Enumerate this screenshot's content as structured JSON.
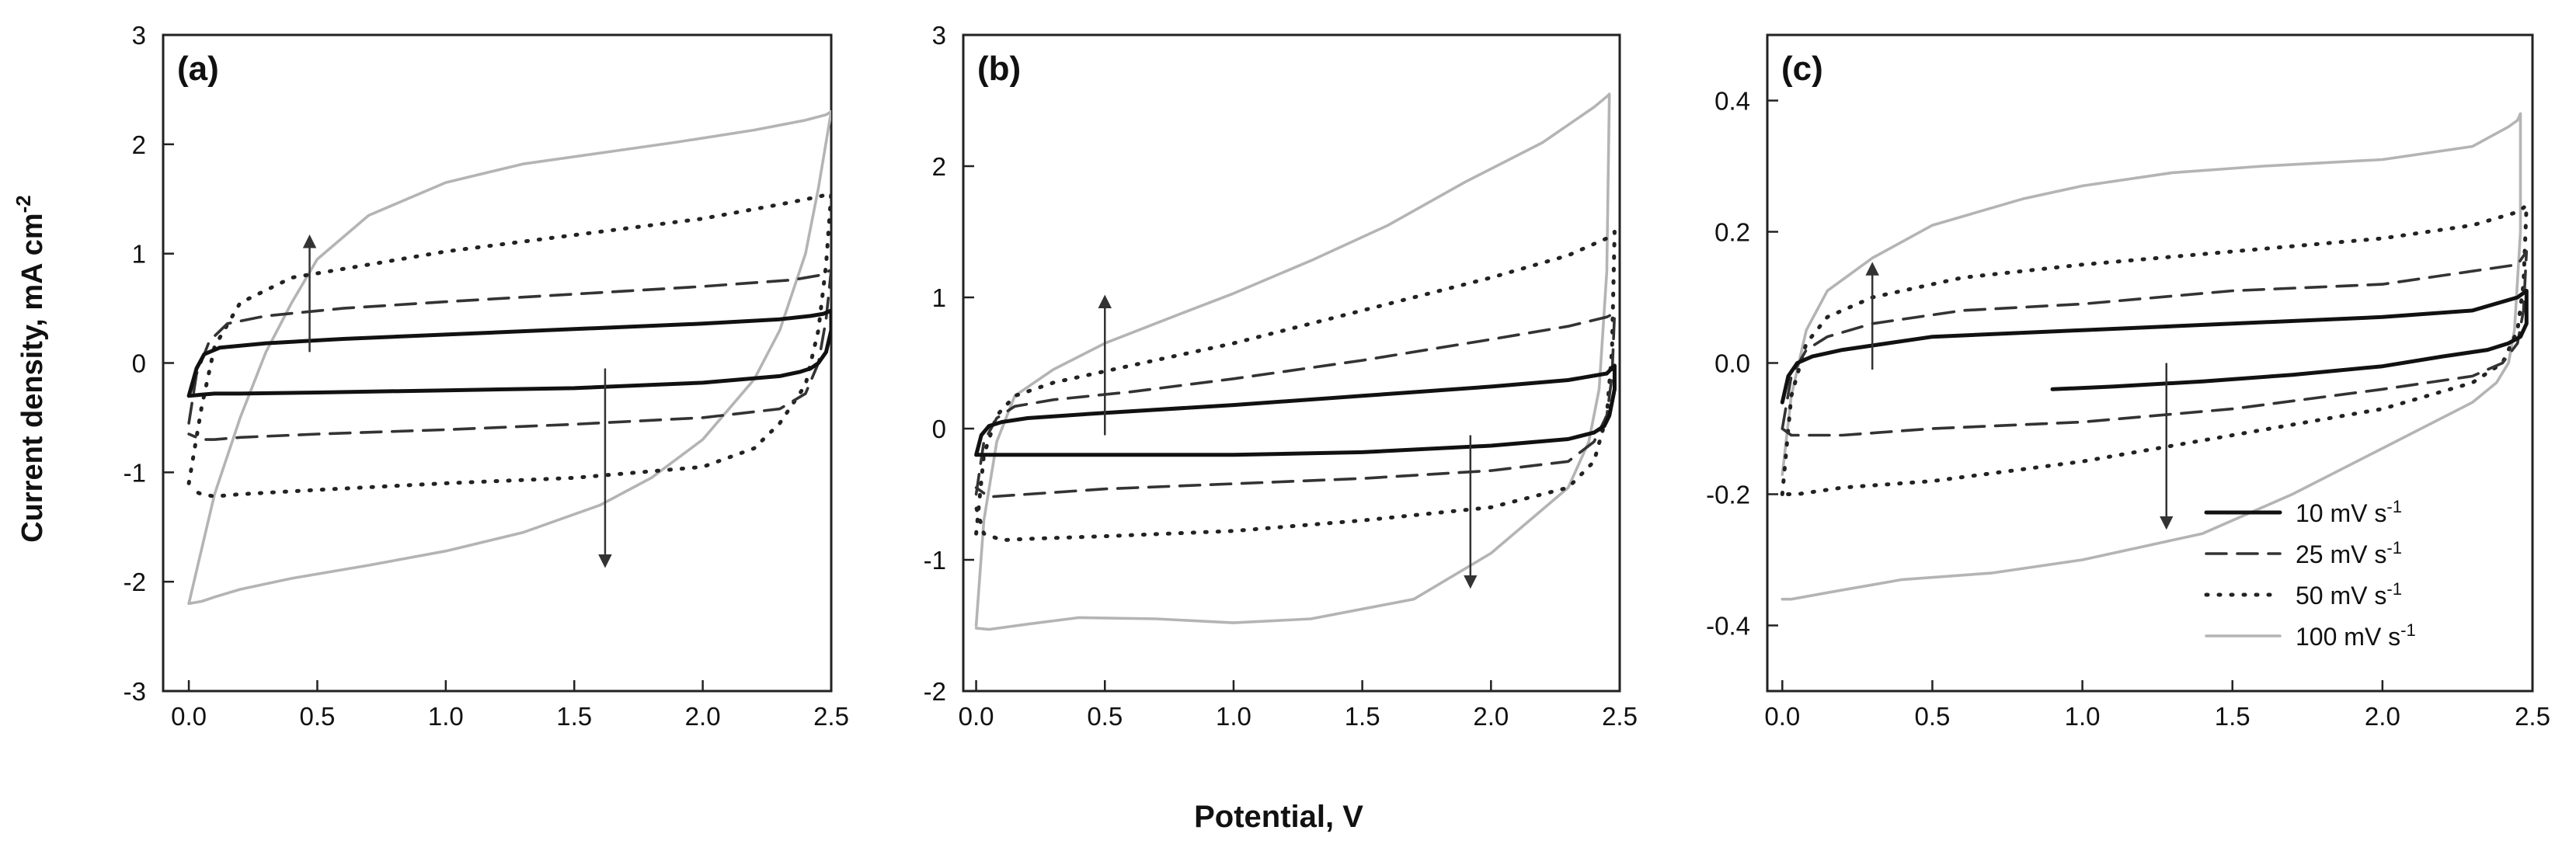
{
  "figure": {
    "shared_ylabel": "Current density, mA cm",
    "shared_ylabel_sup": "-2",
    "shared_xlabel": "Potential, V"
  },
  "legend": {
    "entries": [
      {
        "label": "10 mV s",
        "sup": "-1",
        "series": "10"
      },
      {
        "label": "25 mV s",
        "sup": "-1",
        "series": "25"
      },
      {
        "label": "50 mV s",
        "sup": "-1",
        "series": "50"
      },
      {
        "label": "100 mV s",
        "sup": "-1",
        "series": "100"
      }
    ]
  },
  "styles": {
    "10": {
      "color": "#111111",
      "dash": "solid",
      "weight": "heavy"
    },
    "25": {
      "color": "#333333",
      "dash": "dashed",
      "weight": "normal"
    },
    "50": {
      "color": "#222222",
      "dash": "dotted",
      "weight": "normal"
    },
    "100": {
      "color": "#b4b4b4",
      "dash": "solid",
      "weight": "normal"
    }
  },
  "chart_data": [
    {
      "type": "line",
      "panel_label": "(a)",
      "xlim": [
        -0.1,
        2.5
      ],
      "ylim": [
        -3,
        3
      ],
      "xticks": [
        "0.0",
        "0.5",
        "1.0",
        "1.5",
        "2.0",
        "2.5"
      ],
      "yticks": [
        "-3",
        "-2",
        "-1",
        "0",
        "1",
        "2",
        "3"
      ],
      "arrows": [
        {
          "from": [
            0.47,
            0.1
          ],
          "to": [
            0.47,
            1.15
          ]
        },
        {
          "from": [
            1.62,
            -0.05
          ],
          "to": [
            1.62,
            -1.85
          ]
        }
      ],
      "series": [
        {
          "key": "100",
          "x": [
            0.0,
            0.05,
            0.1,
            0.2,
            0.3,
            0.4,
            0.5,
            0.7,
            1.0,
            1.3,
            1.6,
            1.9,
            2.2,
            2.4,
            2.48,
            2.5,
            2.45,
            2.4,
            2.3,
            2.2,
            2.0,
            1.8,
            1.6,
            1.3,
            1.0,
            0.7,
            0.4,
            0.2,
            0.1,
            0.05,
            0.0
          ],
          "y": [
            -2.2,
            -1.7,
            -1.2,
            -0.5,
            0.1,
            0.55,
            0.95,
            1.35,
            1.65,
            1.82,
            1.92,
            2.02,
            2.13,
            2.22,
            2.27,
            2.3,
            1.6,
            1.0,
            0.3,
            -0.15,
            -0.7,
            -1.05,
            -1.3,
            -1.55,
            -1.72,
            -1.85,
            -1.97,
            -2.07,
            -2.14,
            -2.18,
            -2.2
          ]
        },
        {
          "key": "50",
          "x": [
            0.0,
            0.05,
            0.1,
            0.2,
            0.4,
            0.7,
            1.0,
            1.5,
            2.0,
            2.3,
            2.45,
            2.5,
            2.48,
            2.45,
            2.4,
            2.3,
            2.2,
            2.0,
            1.5,
            1.0,
            0.5,
            0.2,
            0.1,
            0.05,
            0.0
          ],
          "y": [
            -1.1,
            -0.4,
            0.15,
            0.55,
            0.78,
            0.9,
            1.02,
            1.17,
            1.32,
            1.45,
            1.52,
            1.55,
            0.9,
            0.3,
            -0.2,
            -0.55,
            -0.78,
            -0.95,
            -1.05,
            -1.1,
            -1.16,
            -1.2,
            -1.22,
            -1.2,
            -1.15
          ]
        },
        {
          "key": "25",
          "x": [
            0.0,
            0.03,
            0.08,
            0.15,
            0.3,
            0.6,
            1.0,
            1.5,
            2.0,
            2.35,
            2.45,
            2.5,
            2.48,
            2.45,
            2.4,
            2.3,
            2.0,
            1.5,
            1.0,
            0.5,
            0.2,
            0.1,
            0.05,
            0.0
          ],
          "y": [
            -0.55,
            -0.1,
            0.2,
            0.36,
            0.43,
            0.5,
            0.56,
            0.63,
            0.7,
            0.76,
            0.8,
            0.85,
            0.4,
            0.0,
            -0.28,
            -0.42,
            -0.5,
            -0.56,
            -0.61,
            -0.65,
            -0.68,
            -0.7,
            -0.7,
            -0.65
          ]
        },
        {
          "key": "10",
          "x": [
            0.0,
            0.03,
            0.06,
            0.12,
            0.3,
            0.6,
            1.0,
            1.5,
            2.0,
            2.3,
            2.42,
            2.47,
            2.5,
            2.5,
            2.48,
            2.45,
            2.42,
            2.38,
            2.3,
            2.0,
            1.5,
            1.0,
            0.5,
            0.2,
            0.1,
            0.05,
            0.0
          ],
          "y": [
            -0.3,
            -0.05,
            0.08,
            0.14,
            0.18,
            0.22,
            0.26,
            0.31,
            0.36,
            0.4,
            0.43,
            0.45,
            0.48,
            0.3,
            0.1,
            0.0,
            -0.05,
            -0.08,
            -0.12,
            -0.18,
            -0.23,
            -0.25,
            -0.27,
            -0.28,
            -0.28,
            -0.29,
            -0.3
          ]
        }
      ]
    },
    {
      "type": "line",
      "panel_label": "(b)",
      "xlim": [
        -0.05,
        2.5
      ],
      "ylim": [
        -2,
        3
      ],
      "xticks": [
        "0.0",
        "0.5",
        "1.0",
        "1.5",
        "2.0",
        "2.5"
      ],
      "yticks": [
        "-2",
        "-1",
        "0",
        "1",
        "2",
        "3"
      ],
      "arrows": [
        {
          "from": [
            0.5,
            -0.05
          ],
          "to": [
            0.5,
            1.0
          ]
        },
        {
          "from": [
            1.92,
            -0.05
          ],
          "to": [
            1.92,
            -1.2
          ]
        }
      ],
      "series": [
        {
          "key": "100",
          "x": [
            0.0,
            0.03,
            0.08,
            0.15,
            0.3,
            0.5,
            0.8,
            1.0,
            1.3,
            1.6,
            1.9,
            2.2,
            2.4,
            2.45,
            2.46,
            2.45,
            2.42,
            2.38,
            2.3,
            2.0,
            1.7,
            1.3,
            1.0,
            0.7,
            0.4,
            0.2,
            0.05,
            0.0
          ],
          "y": [
            -1.5,
            -0.7,
            -0.1,
            0.25,
            0.45,
            0.65,
            0.88,
            1.03,
            1.28,
            1.55,
            1.88,
            2.18,
            2.45,
            2.53,
            2.55,
            1.2,
            0.3,
            -0.1,
            -0.45,
            -0.95,
            -1.3,
            -1.45,
            -1.48,
            -1.45,
            -1.44,
            -1.49,
            -1.53,
            -1.52
          ]
        },
        {
          "key": "50",
          "x": [
            0.0,
            0.03,
            0.08,
            0.15,
            0.3,
            0.6,
            1.0,
            1.5,
            2.0,
            2.3,
            2.45,
            2.48,
            2.47,
            2.45,
            2.4,
            2.3,
            2.0,
            1.5,
            1.0,
            0.5,
            0.2,
            0.1,
            0.03,
            0.0
          ],
          "y": [
            -0.8,
            -0.2,
            0.1,
            0.25,
            0.35,
            0.48,
            0.65,
            0.9,
            1.15,
            1.32,
            1.45,
            1.5,
            0.6,
            0.1,
            -0.25,
            -0.45,
            -0.6,
            -0.7,
            -0.78,
            -0.82,
            -0.84,
            -0.85,
            -0.8,
            -0.6
          ]
        },
        {
          "key": "25",
          "x": [
            0.0,
            0.03,
            0.08,
            0.15,
            0.3,
            0.6,
            1.0,
            1.5,
            2.0,
            2.3,
            2.45,
            2.48,
            2.47,
            2.45,
            2.4,
            2.3,
            2.0,
            1.5,
            1.0,
            0.5,
            0.2,
            0.05,
            0.0
          ],
          "y": [
            -0.5,
            -0.1,
            0.08,
            0.17,
            0.22,
            0.28,
            0.38,
            0.52,
            0.68,
            0.78,
            0.85,
            0.88,
            0.4,
            0.1,
            -0.1,
            -0.25,
            -0.32,
            -0.38,
            -0.42,
            -0.46,
            -0.5,
            -0.52,
            -0.45
          ]
        },
        {
          "key": "10",
          "x": [
            0.0,
            0.02,
            0.05,
            0.1,
            0.2,
            0.5,
            1.0,
            1.5,
            2.0,
            2.3,
            2.45,
            2.48,
            2.48,
            2.46,
            2.44,
            2.4,
            2.3,
            2.0,
            1.5,
            1.0,
            0.5,
            0.2,
            0.05,
            0.0
          ],
          "y": [
            -0.2,
            -0.05,
            0.02,
            0.05,
            0.08,
            0.12,
            0.18,
            0.25,
            0.32,
            0.37,
            0.42,
            0.48,
            0.3,
            0.1,
            0.02,
            -0.03,
            -0.08,
            -0.13,
            -0.18,
            -0.2,
            -0.2,
            -0.2,
            -0.2,
            -0.2
          ]
        }
      ]
    },
    {
      "type": "line",
      "panel_label": "(c)",
      "xlim": [
        -0.05,
        2.5
      ],
      "ylim": [
        -0.5,
        0.5
      ],
      "xticks": [
        "0.0",
        "0.5",
        "1.0",
        "1.5",
        "2.0",
        "2.5"
      ],
      "yticks": [
        "-0.4",
        "-0.2",
        "0.0",
        "0.2",
        "0.4"
      ],
      "arrows": [
        {
          "from": [
            0.3,
            -0.01
          ],
          "to": [
            0.3,
            0.15
          ]
        },
        {
          "from": [
            1.28,
            0.0
          ],
          "to": [
            1.28,
            -0.25
          ]
        }
      ],
      "series": [
        {
          "key": "100",
          "x": [
            0.0,
            0.03,
            0.08,
            0.15,
            0.3,
            0.5,
            0.8,
            1.0,
            1.3,
            1.6,
            2.0,
            2.3,
            2.42,
            2.45,
            2.46,
            2.46,
            2.44,
            2.42,
            2.38,
            2.3,
            2.0,
            1.7,
            1.4,
            1.0,
            0.7,
            0.4,
            0.15,
            0.03,
            0.0
          ],
          "y": [
            -0.17,
            -0.05,
            0.05,
            0.11,
            0.16,
            0.21,
            0.25,
            0.27,
            0.29,
            0.3,
            0.31,
            0.33,
            0.36,
            0.37,
            0.38,
            0.2,
            0.05,
            0.0,
            -0.03,
            -0.06,
            -0.13,
            -0.2,
            -0.26,
            -0.3,
            -0.32,
            -0.33,
            -0.35,
            -0.36,
            -0.36
          ]
        },
        {
          "key": "50",
          "x": [
            0.0,
            0.03,
            0.08,
            0.15,
            0.3,
            0.6,
            1.0,
            1.5,
            2.0,
            2.3,
            2.45,
            2.48,
            2.47,
            2.45,
            2.4,
            2.3,
            2.0,
            1.5,
            1.0,
            0.5,
            0.2,
            0.05,
            0.0
          ],
          "y": [
            -0.2,
            -0.05,
            0.03,
            0.07,
            0.1,
            0.13,
            0.15,
            0.17,
            0.19,
            0.21,
            0.23,
            0.24,
            0.12,
            0.05,
            0.0,
            -0.03,
            -0.07,
            -0.11,
            -0.15,
            -0.18,
            -0.19,
            -0.2,
            -0.2
          ]
        },
        {
          "key": "25",
          "x": [
            0.0,
            0.03,
            0.08,
            0.15,
            0.3,
            0.6,
            1.0,
            1.5,
            2.0,
            2.3,
            2.45,
            2.48,
            2.47,
            2.45,
            2.4,
            2.3,
            2.0,
            1.5,
            1.0,
            0.5,
            0.2,
            0.03,
            0.0
          ],
          "y": [
            -0.1,
            -0.02,
            0.02,
            0.04,
            0.06,
            0.08,
            0.09,
            0.11,
            0.12,
            0.14,
            0.15,
            0.17,
            0.08,
            0.03,
            0.0,
            -0.02,
            -0.04,
            -0.07,
            -0.09,
            -0.1,
            -0.11,
            -0.11,
            -0.1
          ]
        },
        {
          "key": "10",
          "x": [
            0.0,
            0.02,
            0.05,
            0.1,
            0.2,
            0.5,
            1.0,
            1.5,
            2.0,
            2.3,
            2.45,
            2.48,
            2.48,
            2.46,
            2.42,
            2.35,
            2.2,
            2.0,
            1.7,
            1.4,
            1.1,
            0.9
          ],
          "y": [
            -0.06,
            -0.02,
            0.0,
            0.01,
            0.02,
            0.04,
            0.05,
            0.06,
            0.07,
            0.08,
            0.1,
            0.11,
            0.06,
            0.04,
            0.03,
            0.02,
            0.01,
            -0.005,
            -0.018,
            -0.028,
            -0.036,
            -0.04
          ]
        }
      ]
    }
  ]
}
